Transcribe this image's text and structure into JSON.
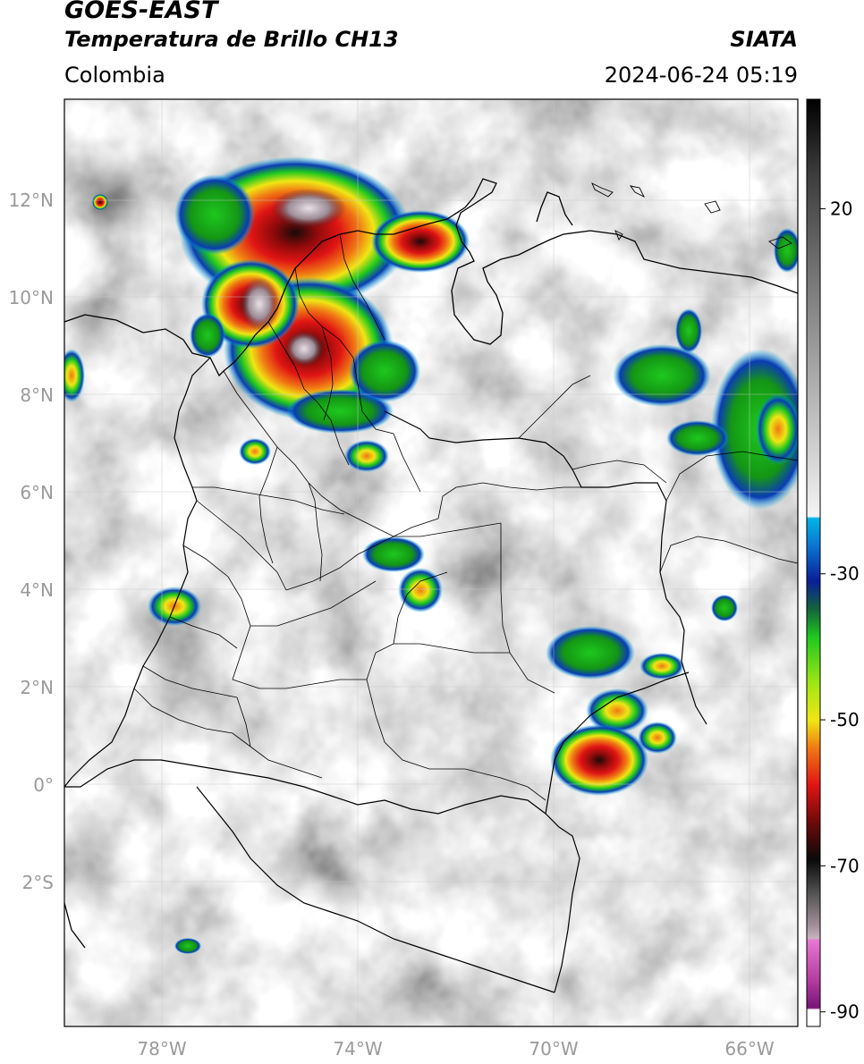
{
  "header": {
    "satellite": "GOES-EAST",
    "product": "Temperatura de Brillo CH13",
    "region": "Colombia",
    "agency": "SIATA",
    "datetime": "2024-06-24 05:19"
  },
  "map": {
    "lat_labels": [
      "12°N",
      "10°N",
      "8°N",
      "6°N",
      "4°N",
      "2°N",
      "0°",
      "2°S"
    ],
    "lon_labels": [
      "78°W",
      "74°W",
      "70°W",
      "66°W"
    ],
    "extent": {
      "lon_min": -80,
      "lon_max": -65,
      "lat_min": -5,
      "lat_max": 14
    },
    "gridlines": true
  },
  "colorbar": {
    "tick_labels": [
      "20",
      "-30",
      "-50",
      "-70",
      "-90"
    ],
    "tick_values": [
      20,
      -30,
      -50,
      -70,
      -90
    ],
    "range": [
      -92,
      35
    ],
    "colors": {
      "cyan": "#00b4e6",
      "blue": "#0a1e96",
      "green": "#1ec81e",
      "yellow": "#f0e614",
      "orange": "#f07814",
      "red": "#c81414",
      "dark": "#140a0a",
      "magenta": "#c83cb4",
      "purple": "#7a1480"
    }
  }
}
